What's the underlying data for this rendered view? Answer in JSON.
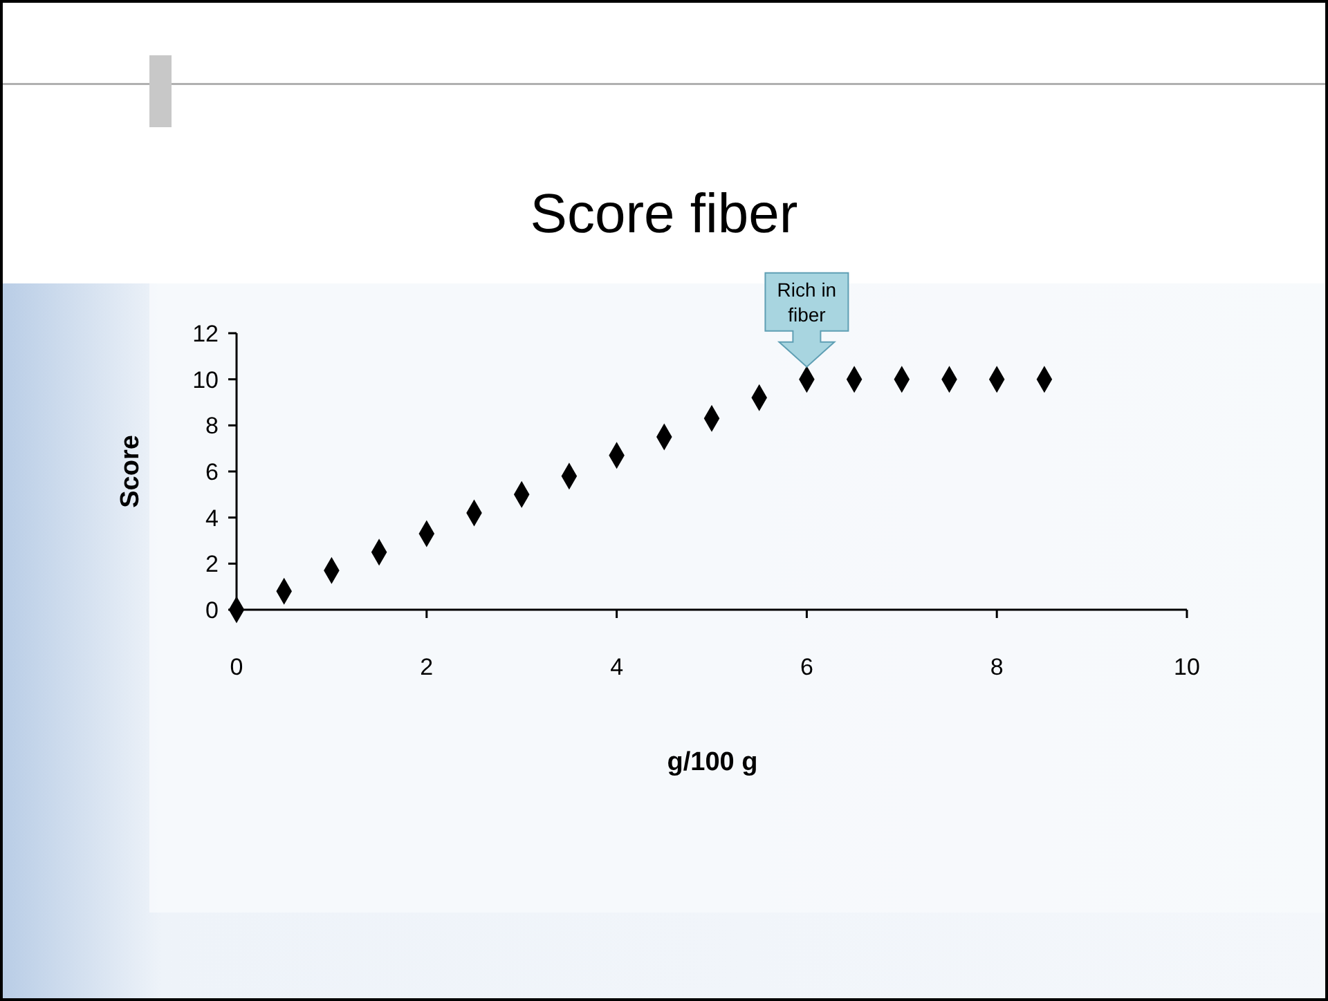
{
  "chart_data": {
    "type": "scatter",
    "title": "Score fiber",
    "xlabel": "g/100 g",
    "ylabel": "Score",
    "x": [
      0,
      0.5,
      1,
      1.5,
      2,
      2.5,
      3,
      3.5,
      4,
      4.5,
      5,
      5.5,
      6,
      6.5,
      7,
      7.5,
      8,
      8.5
    ],
    "values": [
      0,
      0.8,
      1.7,
      2.5,
      3.3,
      4.2,
      5,
      5.8,
      6.7,
      7.5,
      8.3,
      9.2,
      10,
      10,
      10,
      10,
      10,
      10
    ],
    "color": "#000000",
    "marker": "diamond",
    "xlim": [
      0,
      10
    ],
    "xticks": [
      0,
      2,
      4,
      6,
      8,
      10
    ],
    "ylim": [
      0,
      12
    ],
    "yticks": [
      0,
      2,
      4,
      6,
      8,
      10,
      12
    ],
    "annotations": [
      {
        "text": "Rich in fiber",
        "x": 6,
        "y": 10
      }
    ],
    "grid": false
  }
}
